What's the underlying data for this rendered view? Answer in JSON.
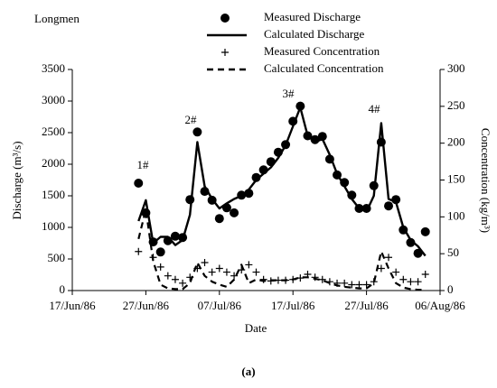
{
  "chart_data": {
    "type": "line",
    "annotations": [
      "Longmen",
      "1#",
      "2#",
      "3#",
      "4#"
    ],
    "caption": "(a)",
    "xlabel": "Date",
    "ylabel": "Discharge (m³/s)",
    "y2label": "Concentration (kg/m³)",
    "xlim": [
      "1986-06-17",
      "1986-08-06"
    ],
    "xticks": [
      {
        "value": "1986-06-17",
        "label": "17/Jun/86"
      },
      {
        "value": "1986-06-27",
        "label": "27/Jun/86"
      },
      {
        "value": "1986-07-07",
        "label": "07/Jul/86"
      },
      {
        "value": "1986-07-17",
        "label": "17/Jul/86"
      },
      {
        "value": "1986-07-27",
        "label": "27/Jul/86"
      },
      {
        "value": "1986-08-06",
        "label": "06/Aug/86"
      }
    ],
    "ylim": [
      0,
      3500
    ],
    "yticks": [
      0,
      500,
      1000,
      1500,
      2000,
      2500,
      3000,
      3500
    ],
    "y2lim": [
      0,
      300
    ],
    "y2ticks": [
      0,
      50,
      100,
      150,
      200,
      250,
      300
    ],
    "x": [
      "1986-06-26",
      "1986-06-27",
      "1986-06-28",
      "1986-06-29",
      "1986-06-30",
      "1986-07-01",
      "1986-07-02",
      "1986-07-03",
      "1986-07-04",
      "1986-07-05",
      "1986-07-06",
      "1986-07-07",
      "1986-07-08",
      "1986-07-09",
      "1986-07-10",
      "1986-07-11",
      "1986-07-12",
      "1986-07-13",
      "1986-07-14",
      "1986-07-15",
      "1986-07-16",
      "1986-07-17",
      "1986-07-18",
      "1986-07-19",
      "1986-07-20",
      "1986-07-21",
      "1986-07-22",
      "1986-07-23",
      "1986-07-24",
      "1986-07-25",
      "1986-07-26",
      "1986-07-27",
      "1986-07-28",
      "1986-07-29",
      "1986-07-30",
      "1986-07-31",
      "1986-08-01",
      "1986-08-02",
      "1986-08-03",
      "1986-08-04"
    ],
    "series": [
      {
        "name": "Measured Discharge",
        "color": "#000000",
        "style": "scatter",
        "marker": "circle",
        "values": [
          1700,
          1230,
          770,
          610,
          790,
          860,
          840,
          1440,
          2510,
          1570,
          1430,
          1140,
          1310,
          1230,
          1510,
          1540,
          1790,
          1910,
          2040,
          2190,
          2310,
          2680,
          2920,
          2450,
          2390,
          2440,
          2080,
          1830,
          1710,
          1510,
          1300,
          1300,
          1660,
          2350,
          1340,
          1440,
          960,
          760,
          590,
          930
        ]
      },
      {
        "name": "Calculated Discharge",
        "color": "#000000",
        "style": "line",
        "dash": false,
        "values": [
          1100,
          1430,
          750,
          850,
          850,
          720,
          800,
          1200,
          2350,
          1650,
          1450,
          1300,
          1380,
          1450,
          1500,
          1600,
          1750,
          1850,
          1950,
          2100,
          2300,
          2600,
          2900,
          2450,
          2350,
          2400,
          2150,
          1850,
          1650,
          1450,
          1300,
          1250,
          1500,
          2650,
          1450,
          1400,
          1000,
          800,
          700,
          550
        ]
      },
      {
        "name": "Measured Concentration",
        "color": "#000000",
        "style": "scatter",
        "marker": "plus",
        "axis": "y2",
        "values": [
          53,
          103,
          45,
          32,
          20,
          15,
          10,
          18,
          30,
          38,
          25,
          30,
          25,
          20,
          28,
          35,
          25,
          15,
          13,
          14,
          14,
          15,
          17,
          22,
          18,
          15,
          12,
          10,
          10,
          8,
          8,
          8,
          12,
          30,
          45,
          25,
          15,
          12,
          12,
          22
        ]
      },
      {
        "name": "Calculated Concentration",
        "color": "#000000",
        "style": "line",
        "dash": true,
        "axis": "y2",
        "values": [
          70,
          110,
          40,
          8,
          3,
          2,
          2,
          10,
          38,
          20,
          12,
          8,
          5,
          15,
          35,
          10,
          15,
          13,
          14,
          14,
          14,
          15,
          18,
          18,
          16,
          14,
          10,
          7,
          5,
          4,
          3,
          3,
          10,
          53,
          30,
          10,
          4,
          2,
          1,
          1
        ]
      }
    ]
  }
}
